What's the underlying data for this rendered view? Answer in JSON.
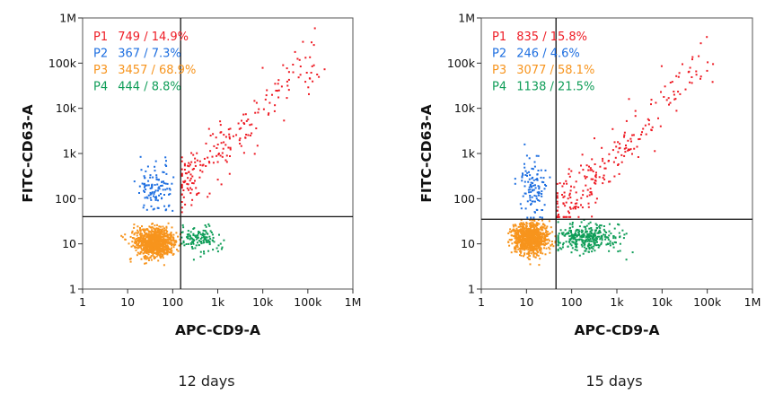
{
  "chart_data": [
    {
      "type": "scatter",
      "scale": "log-log",
      "caption": "12 days",
      "xlabel": "APC-CD9-A",
      "ylabel": "FITC-CD63-A",
      "xlim": [
        1,
        1000000
      ],
      "ylim": [
        1,
        1000000
      ],
      "x_ticks": [
        1,
        10,
        100,
        1000,
        10000,
        100000,
        1000000
      ],
      "x_tick_labels": [
        "1",
        "10",
        "100",
        "1k",
        "10k",
        "100k",
        "1M"
      ],
      "y_ticks": [
        1,
        10,
        100,
        1000,
        10000,
        100000,
        1000000
      ],
      "y_tick_labels": [
        "1",
        "10",
        "100",
        "1k",
        "10k",
        "100k",
        "1M"
      ],
      "gate_x": 150,
      "gate_y": 40,
      "legend_position": "top-left",
      "populations": [
        {
          "id": "P1",
          "count": 749,
          "percent": "14.9%",
          "label": "749 / 14.9%",
          "color": "#ee1c25"
        },
        {
          "id": "P2",
          "count": 367,
          "percent": "7.3%",
          "label": "367 / 7.3%",
          "color": "#1e6fe0"
        },
        {
          "id": "P3",
          "count": 3457,
          "percent": "68.9%",
          "label": "3457 / 68.9%",
          "color": "#f7941d"
        },
        {
          "id": "P4",
          "count": 444,
          "percent": "8.8%",
          "label": "444 / 8.8%",
          "color": "#0f9d58"
        }
      ]
    },
    {
      "type": "scatter",
      "scale": "log-log",
      "caption": "15 days",
      "xlabel": "APC-CD9-A",
      "ylabel": "FITC-CD63-A",
      "xlim": [
        1,
        1000000
      ],
      "ylim": [
        1,
        1000000
      ],
      "x_ticks": [
        1,
        10,
        100,
        1000,
        10000,
        100000,
        1000000
      ],
      "x_tick_labels": [
        "1",
        "10",
        "100",
        "1k",
        "10k",
        "100k",
        "1M"
      ],
      "y_ticks": [
        1,
        10,
        100,
        1000,
        10000,
        100000,
        1000000
      ],
      "y_tick_labels": [
        "1",
        "10",
        "100",
        "1k",
        "10k",
        "100k",
        "1M"
      ],
      "gate_x": 45,
      "gate_y": 35,
      "legend_position": "top-left",
      "populations": [
        {
          "id": "P1",
          "count": 835,
          "percent": "15.8%",
          "label": "835 / 15.8%",
          "color": "#ee1c25"
        },
        {
          "id": "P2",
          "count": 246,
          "percent": "4.6%",
          "label": "246 / 4.6%",
          "color": "#1e6fe0"
        },
        {
          "id": "P3",
          "count": 3077,
          "percent": "58.1%",
          "label": "3077 / 58.1%",
          "color": "#f7941d"
        },
        {
          "id": "P4",
          "count": 1138,
          "percent": "21.5%",
          "label": "1138 / 21.5%",
          "color": "#0f9d58"
        }
      ]
    }
  ]
}
